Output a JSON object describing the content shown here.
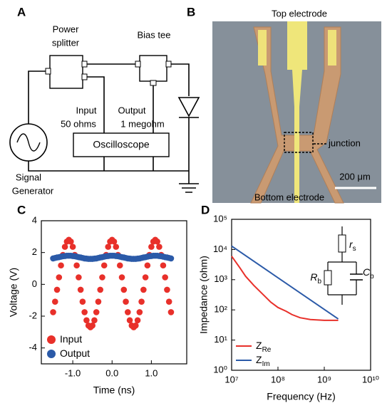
{
  "panels": {
    "a": "A",
    "b": "B",
    "c": "C",
    "d": "D"
  },
  "diagram": {
    "power_splitter": [
      "Power",
      "splitter"
    ],
    "bias_tee": "Bias tee",
    "input": [
      "Input",
      "50 ohms"
    ],
    "output": [
      "Output",
      "1 megohm"
    ],
    "oscilloscope": "Oscilloscope",
    "signal_generator": [
      "Signal",
      "Generator"
    ]
  },
  "photo": {
    "top_electrode": "Top electrode",
    "junction": "junction",
    "scale_bar": "200 μm",
    "bottom_electrode": "Bottom electrode"
  },
  "chart_data": [
    {
      "type": "scatter",
      "xlabel": "Time (ns)",
      "ylabel": "Voltage (V)",
      "xlim": [
        -1.8,
        1.9
      ],
      "ylim": [
        -5,
        4
      ],
      "xticks": [
        {
          "value": -1,
          "label": "-1.0"
        },
        {
          "value": 0,
          "label": "0.0"
        },
        {
          "value": 1,
          "label": "1.0"
        }
      ],
      "yticks": [
        -4,
        -2,
        0,
        2,
        4
      ],
      "legend": "lower left",
      "x": [
        -1.5,
        -1.45,
        -1.4,
        -1.35,
        -1.3,
        -1.25,
        -1.2,
        -1.15,
        -1.1,
        -1.05,
        -1,
        -0.95,
        -0.9,
        -0.85,
        -0.8,
        -0.75,
        -0.7,
        -0.65,
        -0.6,
        -0.55,
        -0.5,
        -0.45,
        -0.4,
        -0.35,
        -0.3,
        -0.25,
        -0.2,
        -0.15,
        -0.1,
        -0.05,
        0,
        0.05,
        0.1,
        0.15,
        0.2,
        0.25,
        0.3,
        0.35,
        0.4,
        0.45,
        0.5,
        0.55,
        0.6,
        0.65,
        0.7,
        0.75,
        0.8,
        0.85,
        0.9,
        0.95,
        1,
        1.05,
        1.1,
        1.15,
        1.2,
        1.25,
        1.3,
        1.35,
        1.4,
        1.45,
        1.5
      ],
      "series": [
        {
          "name": "Input",
          "color": "#e8302a",
          "values": [
            -1.75,
            -1.09,
            -0.34,
            0.44,
            1.19,
            1.85,
            2.36,
            2.69,
            2.8,
            2.69,
            2.36,
            1.85,
            1.19,
            0.44,
            -0.34,
            -1.09,
            -1.75,
            -2.26,
            -2.59,
            -2.7,
            -2.59,
            -2.26,
            -1.75,
            -1.09,
            -0.34,
            0.44,
            1.19,
            1.85,
            2.36,
            2.69,
            2.8,
            2.69,
            2.36,
            1.85,
            1.19,
            0.44,
            -0.34,
            -1.09,
            -1.75,
            -2.26,
            -2.59,
            -2.7,
            -2.59,
            -2.26,
            -1.75,
            -1.09,
            -0.34,
            0.44,
            1.19,
            1.85,
            2.36,
            2.69,
            2.8,
            2.69,
            2.36,
            1.85,
            1.19,
            0.44,
            -0.34,
            -1.09,
            -1.75
          ]
        },
        {
          "name": "Output",
          "color": "#2b5aa8",
          "values": [
            1.63,
            1.66,
            1.69,
            1.71,
            1.74,
            1.77,
            1.78,
            1.8,
            1.8,
            1.8,
            1.78,
            1.77,
            1.74,
            1.71,
            1.69,
            1.66,
            1.63,
            1.62,
            1.6,
            1.6,
            1.6,
            1.62,
            1.63,
            1.66,
            1.69,
            1.71,
            1.74,
            1.77,
            1.78,
            1.8,
            1.8,
            1.8,
            1.78,
            1.77,
            1.74,
            1.71,
            1.69,
            1.66,
            1.63,
            1.62,
            1.6,
            1.6,
            1.6,
            1.62,
            1.63,
            1.66,
            1.69,
            1.71,
            1.74,
            1.77,
            1.78,
            1.8,
            1.8,
            1.8,
            1.78,
            1.77,
            1.74,
            1.71,
            1.69,
            1.66,
            1.63
          ]
        }
      ]
    },
    {
      "type": "line",
      "xlabel": "Frequency (Hz)",
      "ylabel": "Impedance (ohm)",
      "xscale": "log",
      "yscale": "log",
      "xlim": [
        10000000,
        10000000000
      ],
      "ylim": [
        1,
        100000
      ],
      "xticks": [
        {
          "value": 10000000,
          "label": "10⁷"
        },
        {
          "value": 100000000,
          "label": "10⁸"
        },
        {
          "value": 1000000000,
          "label": "10⁹"
        },
        {
          "value": 10000000000,
          "label": "10¹⁰"
        }
      ],
      "yticks": [
        {
          "value": 1,
          "label": "10⁰"
        },
        {
          "value": 10,
          "label": "10¹"
        },
        {
          "value": 100,
          "label": "10²"
        },
        {
          "value": 1000,
          "label": "10³"
        },
        {
          "value": 10000,
          "label": "10⁴"
        },
        {
          "value": 100000,
          "label": "10⁵"
        }
      ],
      "legend": "lower left",
      "series": [
        {
          "name": "Z",
          "name_sub": "Re",
          "color": "#e8302a",
          "x": [
            10000000,
            15000000,
            20000000,
            30000000,
            50000000,
            70000000,
            100000000,
            150000000,
            200000000,
            300000000,
            500000000,
            1000000000,
            2000000000
          ],
          "values": [
            6000,
            2500,
            1300,
            650,
            300,
            180,
            120,
            90,
            70,
            55,
            48,
            45,
            45
          ]
        },
        {
          "name": "Z",
          "name_sub": "Im",
          "color": "#2b5aa8",
          "x": [
            10000000,
            2000000000
          ],
          "values": [
            13000,
            50
          ]
        }
      ],
      "annotations": [
        {
          "text": "r",
          "sub": "s"
        },
        {
          "text": "R",
          "sub": "b"
        },
        {
          "text": "C",
          "sub": "b"
        }
      ]
    }
  ]
}
